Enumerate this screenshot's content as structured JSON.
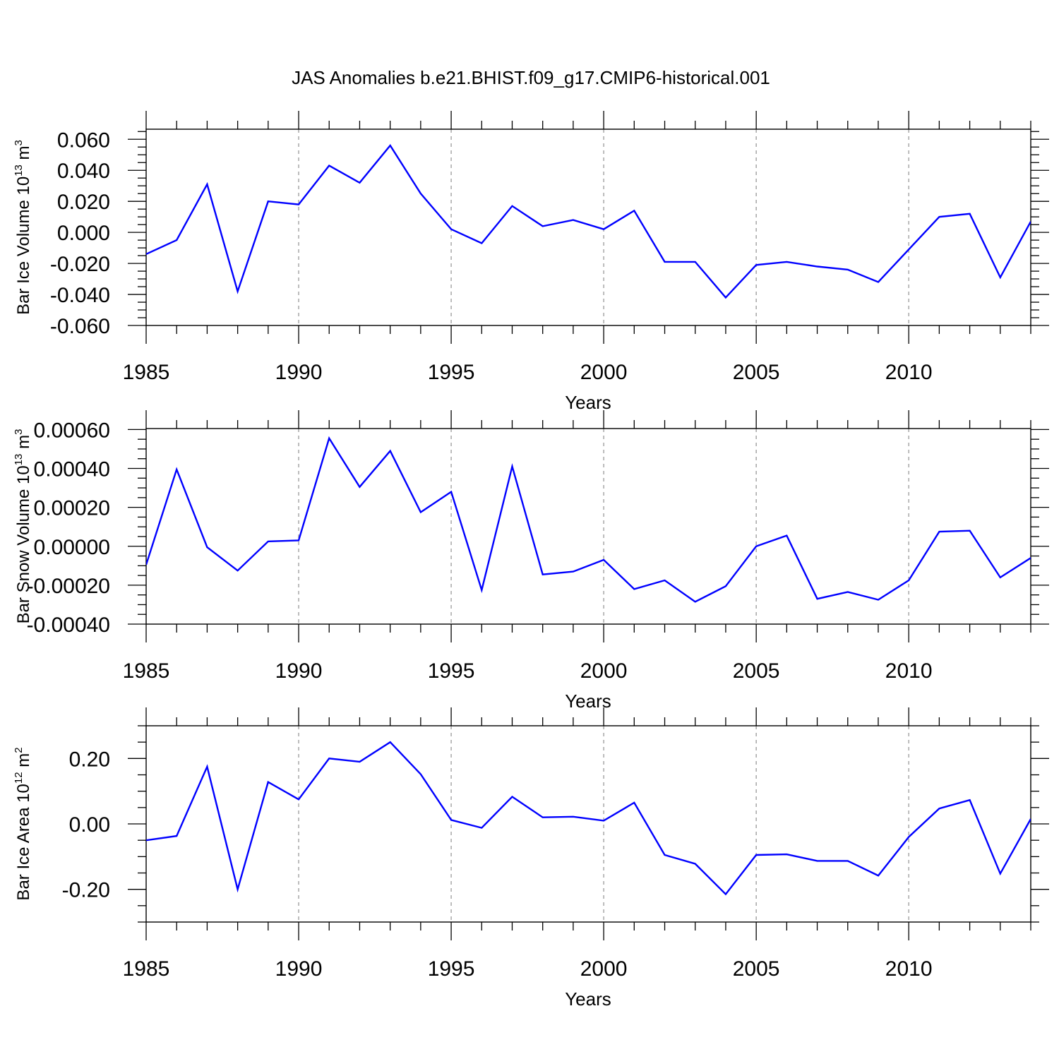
{
  "figure_title": "JAS Anomalies b.e21.BHIST.f09_g17.CMIP6-historical.001",
  "chart_data": [
    {
      "type": "line",
      "title": "",
      "xlabel": "Years",
      "ylabel_base": "Bar Ice Volume 10",
      "ylabel_sup": "13",
      "ylabel_unit": " m",
      "ylabel_unit_sup": "3",
      "xlim": [
        1985,
        2014
      ],
      "ylim": [
        -0.06,
        0.0665
      ],
      "xticks": [
        1985,
        1990,
        1995,
        2000,
        2005,
        2010
      ],
      "xtick_labels": [
        "1985",
        "1990",
        "1995",
        "2000",
        "2005",
        "2010"
      ],
      "yticks": [
        -0.06,
        -0.04,
        -0.02,
        0.0,
        0.02,
        0.04,
        0.06
      ],
      "ytick_labels": [
        "-0.060",
        "-0.040",
        "-0.020",
        "0.000",
        "0.020",
        "0.040",
        "0.060"
      ],
      "ytick_minor_step": 0.005,
      "dashed_vlines": [
        1990,
        1995,
        2000,
        2005,
        2010
      ],
      "line_color": "#0000ff",
      "x": [
        1985,
        1986,
        1987,
        1988,
        1989,
        1990,
        1991,
        1992,
        1993,
        1994,
        1995,
        1996,
        1997,
        1998,
        1999,
        2000,
        2001,
        2002,
        2003,
        2004,
        2005,
        2006,
        2007,
        2008,
        2009,
        2010,
        2011,
        2012,
        2013,
        2014
      ],
      "values": [
        -0.014,
        -0.005,
        0.031,
        -0.038,
        0.02,
        0.018,
        0.043,
        0.032,
        0.056,
        0.025,
        0.002,
        -0.007,
        0.017,
        0.004,
        0.008,
        0.002,
        0.014,
        -0.019,
        -0.019,
        -0.042,
        -0.021,
        -0.019,
        -0.022,
        -0.024,
        -0.032,
        -0.011,
        0.01,
        0.012,
        -0.029,
        0.007
      ]
    },
    {
      "type": "line",
      "title": "",
      "xlabel": "Years",
      "ylabel_base": "Bar Snow Volume 10",
      "ylabel_sup": "13",
      "ylabel_unit": " m",
      "ylabel_unit_sup": "3",
      "xlim": [
        1985,
        2014
      ],
      "ylim": [
        -0.0004,
        0.000605
      ],
      "xticks": [
        1985,
        1990,
        1995,
        2000,
        2005,
        2010
      ],
      "xtick_labels": [
        "1985",
        "1990",
        "1995",
        "2000",
        "2005",
        "2010"
      ],
      "yticks": [
        -0.0004,
        -0.0002,
        0.0,
        0.0002,
        0.0004,
        0.0006
      ],
      "ytick_labels": [
        "-0.00040",
        "-0.00020",
        "0.00000",
        "0.00020",
        "0.00040",
        "0.00060"
      ],
      "ytick_minor_step": 5e-05,
      "dashed_vlines": [
        1990,
        1995,
        2000,
        2005,
        2010
      ],
      "line_color": "#0000ff",
      "x": [
        1985,
        1986,
        1987,
        1988,
        1989,
        1990,
        1991,
        1992,
        1993,
        1994,
        1995,
        1996,
        1997,
        1998,
        1999,
        2000,
        2001,
        2002,
        2003,
        2004,
        2005,
        2006,
        2007,
        2008,
        2009,
        2010,
        2011,
        2012,
        2013,
        2014
      ],
      "values": [
        -9.5e-05,
        0.000395,
        -5e-06,
        -0.000125,
        2.5e-05,
        3e-05,
        0.000555,
        0.000305,
        0.00049,
        0.000175,
        0.00028,
        -0.000225,
        0.00041,
        -0.000145,
        -0.00013,
        -7e-05,
        -0.00022,
        -0.000175,
        -0.000285,
        -0.000205,
        0.0,
        5.5e-05,
        -0.00027,
        -0.000235,
        -0.000275,
        -0.000175,
        7.5e-05,
        8e-05,
        -0.00016,
        -6e-05
      ]
    },
    {
      "type": "line",
      "title": "",
      "xlabel": "Years",
      "ylabel_base": "Bar Ice Area 10",
      "ylabel_sup": "12",
      "ylabel_unit": " m",
      "ylabel_unit_sup": "2",
      "xlim": [
        1985,
        2014
      ],
      "ylim": [
        -0.3,
        0.3
      ],
      "xticks": [
        1985,
        1990,
        1995,
        2000,
        2005,
        2010
      ],
      "xtick_labels": [
        "1985",
        "1990",
        "1995",
        "2000",
        "2005",
        "2010"
      ],
      "yticks": [
        -0.2,
        0.0,
        0.2
      ],
      "ytick_labels": [
        "-0.20",
        "0.00",
        "0.20"
      ],
      "ytick_minor_step": 0.05,
      "dashed_vlines": [
        1990,
        1995,
        2000,
        2005,
        2010
      ],
      "line_color": "#0000ff",
      "x": [
        1985,
        1986,
        1987,
        1988,
        1989,
        1990,
        1991,
        1992,
        1993,
        1994,
        1995,
        1996,
        1997,
        1998,
        1999,
        2000,
        2001,
        2002,
        2003,
        2004,
        2005,
        2006,
        2007,
        2008,
        2009,
        2010,
        2011,
        2012,
        2013,
        2014
      ],
      "values": [
        -0.05,
        -0.037,
        0.175,
        -0.2,
        0.128,
        0.075,
        0.2,
        0.19,
        0.25,
        0.152,
        0.012,
        -0.012,
        0.083,
        0.02,
        0.022,
        0.01,
        0.065,
        -0.095,
        -0.122,
        -0.215,
        -0.095,
        -0.093,
        -0.113,
        -0.113,
        -0.158,
        -0.04,
        0.047,
        0.073,
        -0.152,
        0.015
      ]
    }
  ]
}
